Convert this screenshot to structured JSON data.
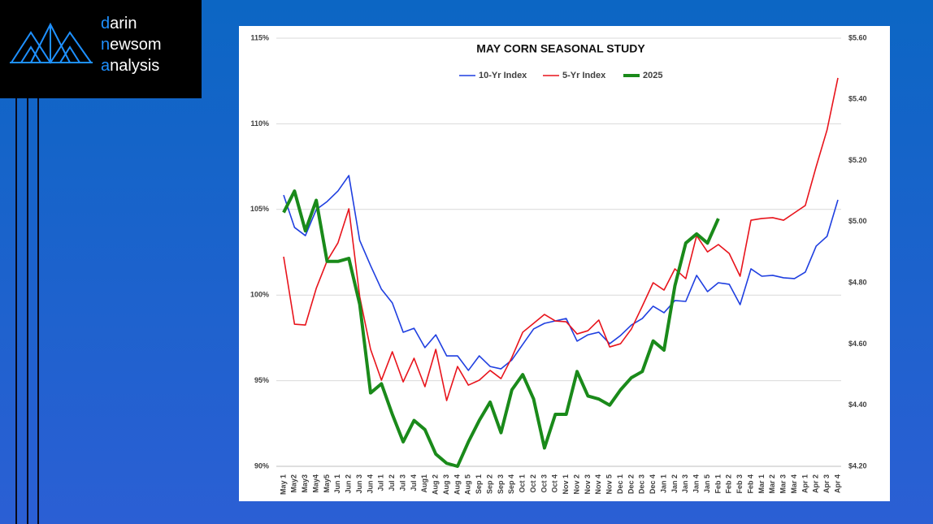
{
  "logo": {
    "lines": [
      {
        "accent": "d",
        "rest": "arin"
      },
      {
        "accent": "n",
        "rest": "ewsom"
      },
      {
        "accent": "a",
        "rest": "nalysis"
      }
    ]
  },
  "chart_data": {
    "type": "line",
    "title": "MAY CORN SEASONAL STUDY",
    "categories": [
      "May 1",
      "May2",
      "May3",
      "May4",
      "May5",
      "Jun 1",
      "Jun 2",
      "Jun 3",
      "Jun 4",
      "Jul 1",
      "Jul 2",
      "Jul 3",
      "Jul 4",
      "Aug1",
      "Aug 2",
      "Aug 3",
      "Aug 4",
      "Aug 5",
      "Sep 1",
      "Sep 2",
      "Sep 3",
      "Sep 4",
      "Oct 1",
      "Oct 2",
      "Oct 3",
      "Oct 4",
      "Nov 1",
      "Nov 2",
      "Nov 3",
      "Nov 4",
      "Nov 5",
      "Dec 1",
      "Dec 2",
      "Dec 3",
      "Dec 4",
      "Jan 1",
      "Jan 2",
      "Jan 3",
      "Jan 4",
      "Jan 5",
      "Feb 1",
      "Feb 2",
      "Feb 3",
      "Feb 4",
      "Mar 1",
      "Mar 2",
      "Mar 3",
      "Mar 4",
      "Apr 1",
      "Apr 2",
      "Apr 3",
      "Apr 4"
    ],
    "series": [
      {
        "name": "10-Yr Index",
        "color": "#1f3fe0",
        "width": 1.6,
        "values": [
          105.84,
          103.95,
          103.47,
          104.99,
          105.46,
          106.08,
          106.98,
          103.19,
          101.72,
          100.34,
          99.54,
          97.83,
          98.06,
          96.93,
          97.68,
          96.45,
          96.45,
          95.6,
          96.45,
          95.83,
          95.69,
          96.21,
          97.12,
          98.02,
          98.35,
          98.49,
          98.63,
          97.31,
          97.68,
          97.83,
          97.16,
          97.64,
          98.25,
          98.63,
          99.35,
          98.97,
          99.68,
          99.63,
          101.15,
          100.2,
          100.72,
          100.63,
          99.44,
          101.53,
          101.1,
          101.15,
          101.01,
          100.96,
          101.34,
          102.86,
          103.43,
          105.56
        ]
      },
      {
        "name": "5-Yr Index",
        "color": "#e8141c",
        "width": 1.6,
        "values": [
          102.24,
          98.3,
          98.25,
          100.39,
          102.0,
          103.05,
          105.04,
          99.91,
          96.83,
          95.03,
          96.69,
          94.93,
          96.31,
          94.65,
          96.83,
          93.84,
          95.83,
          94.74,
          95.03,
          95.6,
          95.12,
          96.36,
          97.83,
          98.35,
          98.87,
          98.49,
          98.44,
          97.73,
          97.92,
          98.54,
          96.97,
          97.16,
          98.02,
          99.35,
          100.72,
          100.29,
          101.53,
          100.96,
          103.47,
          102.52,
          102.95,
          102.43,
          101.1,
          104.37,
          104.47,
          104.52,
          104.37,
          104.8,
          105.23,
          107.5,
          109.64,
          112.68
        ]
      },
      {
        "name": "2025",
        "color": "#1a8a1a",
        "width": 4,
        "axis": "y2",
        "values": [
          5.03,
          5.1,
          4.97,
          5.07,
          4.87,
          4.87,
          4.88,
          4.73,
          4.44,
          4.47,
          4.37,
          4.28,
          4.35,
          4.32,
          4.24,
          4.21,
          4.2,
          4.28,
          4.35,
          4.41,
          4.31,
          4.45,
          4.5,
          4.42,
          4.26,
          4.37,
          4.37,
          4.51,
          4.43,
          4.42,
          4.4,
          4.45,
          4.49,
          4.51,
          4.61,
          4.58,
          4.79,
          4.93,
          4.96,
          4.93,
          5.01,
          null,
          null,
          null,
          null,
          null,
          null,
          null,
          null,
          null,
          null,
          null
        ]
      }
    ],
    "ylim": [
      90,
      115
    ],
    "yticks": [
      {
        "value": 90,
        "label": "90%"
      },
      {
        "value": 95,
        "label": "95%"
      },
      {
        "value": 100,
        "label": "100%"
      },
      {
        "value": 105,
        "label": "105%"
      },
      {
        "value": 110,
        "label": "110%"
      },
      {
        "value": 115,
        "label": "115%"
      }
    ],
    "y2lim": [
      4.2,
      5.6
    ],
    "y2ticks": [
      {
        "value": 4.2,
        "label": "$4.20"
      },
      {
        "value": 4.4,
        "label": "$4.40"
      },
      {
        "value": 4.6,
        "label": "$4.60"
      },
      {
        "value": 4.8,
        "label": "$4.80"
      },
      {
        "value": 5.0,
        "label": "$5.00"
      },
      {
        "value": 5.2,
        "label": "$5.20"
      },
      {
        "value": 5.4,
        "label": "$5.40"
      },
      {
        "value": 5.6,
        "label": "$5.60"
      }
    ],
    "grid": true,
    "legend": "top"
  }
}
